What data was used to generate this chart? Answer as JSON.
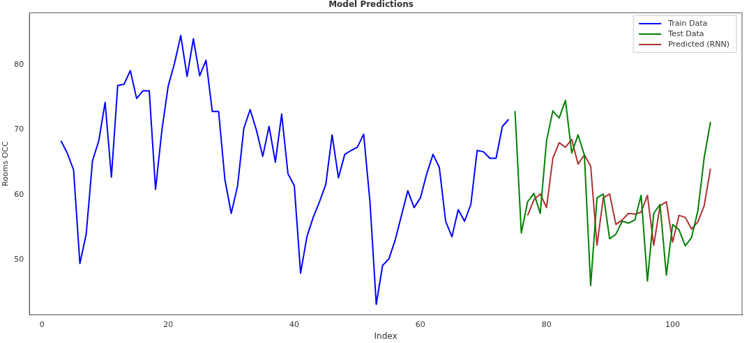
{
  "chart_data": {
    "type": "line",
    "title": "Model Predictions",
    "xlabel": "Index",
    "ylabel": "Rooms OCC",
    "series": [
      {
        "name": "Train Data",
        "color": "#0000ff",
        "x": [
          3,
          4,
          5,
          6,
          7,
          8,
          9,
          10,
          11,
          12,
          13,
          14,
          15,
          16,
          17,
          18,
          19,
          20,
          21,
          22,
          23,
          24,
          25,
          26,
          27,
          28,
          29,
          30,
          31,
          32,
          33,
          34,
          35,
          36,
          37,
          38,
          39,
          40,
          41,
          42,
          43,
          44,
          45,
          46,
          47,
          48,
          49,
          50,
          51,
          52,
          53,
          54,
          55,
          56,
          57,
          58,
          59,
          60,
          61,
          62,
          63,
          64,
          65,
          66,
          67,
          68,
          69,
          70,
          71,
          72,
          73,
          74
        ],
        "values": [
          68.3,
          66.4,
          63.8,
          49.4,
          53.9,
          65.2,
          68.3,
          74.2,
          62.7,
          76.8,
          77.0,
          79.1,
          74.8,
          76.0,
          76.0,
          60.8,
          69.9,
          76.7,
          80.2,
          84.5,
          78.2,
          84.0,
          78.3,
          80.7,
          72.8,
          72.8,
          62.3,
          57.1,
          61.3,
          70.2,
          73.1,
          69.9,
          65.9,
          70.5,
          65.0,
          72.4,
          63.2,
          61.4,
          47.9,
          53.5,
          56.5,
          58.9,
          61.6,
          69.2,
          62.6,
          66.2,
          66.8,
          67.3,
          69.3,
          58.9,
          43.1,
          49.1,
          50.1,
          53.0,
          56.8,
          60.6,
          58.0,
          59.5,
          63.2,
          66.2,
          64.2,
          55.9,
          53.5,
          57.7,
          55.9,
          58.5,
          66.8,
          66.6,
          65.6,
          65.6,
          70.5,
          71.6
        ]
      },
      {
        "name": "Test Data",
        "color": "#008000",
        "x": [
          75,
          76,
          77,
          78,
          79,
          80,
          81,
          82,
          83,
          84,
          85,
          86,
          87,
          88,
          89,
          90,
          91,
          92,
          93,
          94,
          95,
          96,
          97,
          98,
          99,
          100,
          101,
          102,
          103,
          104,
          105,
          106
        ],
        "values": [
          72.9,
          54.1,
          58.9,
          60.2,
          57.1,
          68.3,
          72.9,
          71.8,
          74.5,
          66.4,
          69.2,
          66.1,
          46.0,
          59.5,
          60.1,
          53.2,
          53.9,
          55.9,
          55.6,
          56.1,
          59.9,
          46.7,
          57.1,
          58.5,
          47.6,
          55.4,
          54.6,
          52.1,
          53.4,
          57.5,
          65.7,
          71.2
        ]
      },
      {
        "name": "Predicted (RNN)",
        "color": "#b03030",
        "x": [
          77,
          78,
          79,
          80,
          81,
          82,
          83,
          84,
          85,
          86,
          87,
          88,
          89,
          90,
          91,
          92,
          93,
          94,
          95,
          96,
          97,
          98,
          99,
          100,
          101,
          102,
          103,
          104,
          105,
          106
        ],
        "values": [
          56.8,
          59.2,
          60.1,
          58.0,
          65.6,
          68.0,
          67.3,
          68.5,
          64.7,
          66.1,
          64.4,
          52.2,
          59.5,
          60.1,
          55.4,
          56.1,
          57.1,
          57.0,
          57.3,
          59.9,
          52.2,
          58.3,
          58.9,
          52.7,
          56.8,
          56.5,
          54.7,
          55.8,
          58.3,
          64.0
        ]
      }
    ],
    "xlim": [
      -2,
      111
    ],
    "ylim": [
      41.5,
      88
    ],
    "xticks": [
      0,
      20,
      40,
      60,
      80,
      100
    ],
    "yticks": [
      50,
      60,
      70,
      80
    ],
    "grid": false,
    "legend": "top right",
    "marker": "none",
    "line_style": "solid"
  }
}
